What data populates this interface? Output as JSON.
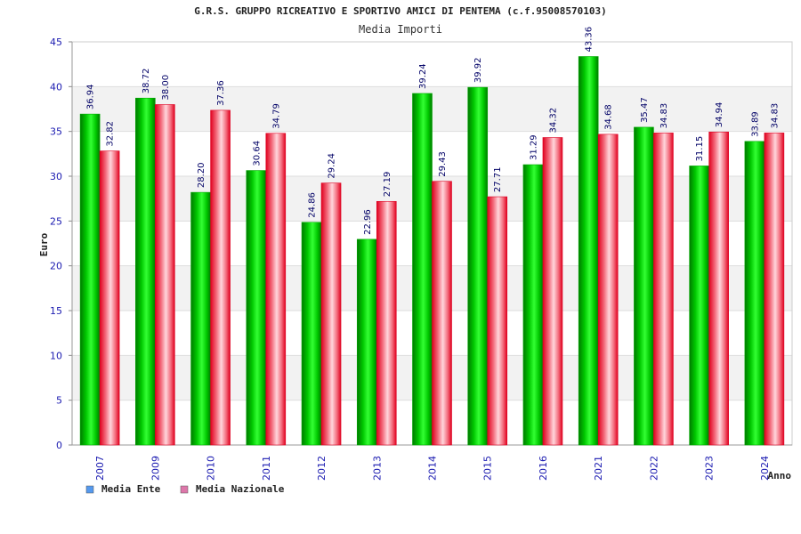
{
  "chart_data": {
    "type": "bar",
    "title": "G.R.S. GRUPPO RICREATIVO E SPORTIVO AMICI DI PENTEMA (c.f.95008570103)",
    "subtitle": "Media Importi",
    "xlabel": "Anno",
    "ylabel": "Euro",
    "ylim": [
      0,
      45
    ],
    "yticks": [
      0,
      5,
      10,
      15,
      20,
      25,
      30,
      35,
      40,
      45
    ],
    "categories": [
      "2007",
      "2009",
      "2010",
      "2011",
      "2012",
      "2013",
      "2014",
      "2015",
      "2016",
      "2021",
      "2022",
      "2023",
      "2024"
    ],
    "series": [
      {
        "name": "Media Ente",
        "values": [
          36.94,
          38.72,
          28.2,
          30.64,
          24.86,
          22.96,
          39.24,
          39.92,
          31.29,
          43.36,
          35.47,
          31.15,
          33.89
        ],
        "labels": [
          "36.94",
          "38.72",
          "28.20",
          "30.64",
          "24.86",
          "22.96",
          "39.24",
          "39.92",
          "31.29",
          "43.36",
          "35.47",
          "31.15",
          "33.89"
        ],
        "color": "#00cc00",
        "legend_color": "#5599ee"
      },
      {
        "name": "Media Nazionale",
        "values": [
          32.82,
          38.0,
          37.36,
          34.79,
          29.24,
          27.19,
          29.43,
          27.71,
          34.32,
          34.68,
          34.83,
          34.94,
          34.83
        ],
        "labels": [
          "32.82",
          "38.00",
          "37.36",
          "34.79",
          "29.24",
          "27.19",
          "29.43",
          "27.71",
          "34.32",
          "34.68",
          "34.83",
          "34.94",
          "34.83"
        ],
        "color": "#ee1133",
        "legend_color": "#dd77aa"
      }
    ],
    "grid": true,
    "legend_position": "bottom-left"
  }
}
